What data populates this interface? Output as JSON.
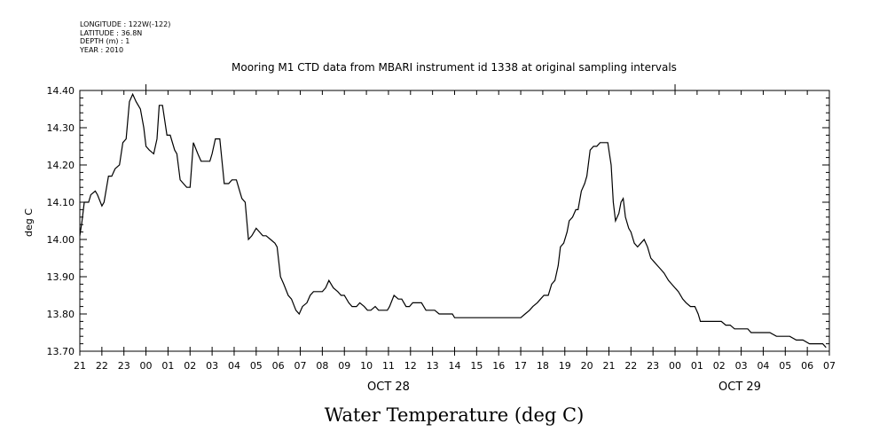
{
  "header": {
    "longitude": "LONGITUDE : 122W(-122)",
    "latitude": "LATITUDE : 36.8N",
    "depth": "DEPTH (m) : 1",
    "year": "YEAR : 2010"
  },
  "chart_data": {
    "type": "line",
    "title": "Mooring M1 CTD data from MBARI instrument id 1338 at original sampling intervals",
    "ylabel": "deg C",
    "xlabel": "Water Temperature (deg C)",
    "ylim": [
      13.7,
      14.4
    ],
    "yticks": [
      "13.70",
      "13.80",
      "13.90",
      "14.00",
      "14.10",
      "14.20",
      "14.30",
      "14.40"
    ],
    "xlim_hours": [
      21,
      55
    ],
    "xtick_labels": [
      "21",
      "22",
      "23",
      "00",
      "01",
      "02",
      "03",
      "04",
      "05",
      "06",
      "07",
      "08",
      "09",
      "10",
      "11",
      "12",
      "13",
      "14",
      "15",
      "16",
      "17",
      "18",
      "19",
      "20",
      "21",
      "22",
      "23",
      "00",
      "01",
      "02",
      "03",
      "04",
      "05",
      "06",
      "07"
    ],
    "date_labels": [
      "OCT 28",
      "OCT 29"
    ],
    "grid": false,
    "series": [
      {
        "values": [
          [
            21.0,
            14.01
          ],
          [
            21.1,
            14.05
          ],
          [
            21.2,
            14.1
          ],
          [
            21.4,
            14.1
          ],
          [
            21.5,
            14.12
          ],
          [
            21.7,
            14.13
          ],
          [
            21.8,
            14.12
          ],
          [
            22.0,
            14.09
          ],
          [
            22.1,
            14.1
          ],
          [
            22.3,
            14.17
          ],
          [
            22.45,
            14.17
          ],
          [
            22.6,
            14.19
          ],
          [
            22.8,
            14.2
          ],
          [
            22.95,
            14.26
          ],
          [
            23.1,
            14.27
          ],
          [
            23.25,
            14.37
          ],
          [
            23.4,
            14.39
          ],
          [
            23.55,
            14.37
          ],
          [
            23.75,
            14.35
          ],
          [
            23.9,
            14.3
          ],
          [
            24.0,
            14.25
          ],
          [
            24.15,
            14.24
          ],
          [
            24.35,
            14.23
          ],
          [
            24.5,
            14.27
          ],
          [
            24.6,
            14.36
          ],
          [
            24.75,
            14.36
          ],
          [
            24.95,
            14.28
          ],
          [
            25.1,
            14.28
          ],
          [
            25.3,
            14.24
          ],
          [
            25.4,
            14.23
          ],
          [
            25.55,
            14.16
          ],
          [
            25.7,
            14.15
          ],
          [
            25.85,
            14.14
          ],
          [
            26.0,
            14.14
          ],
          [
            26.15,
            14.26
          ],
          [
            26.35,
            14.23
          ],
          [
            26.5,
            14.21
          ],
          [
            26.7,
            14.21
          ],
          [
            26.9,
            14.21
          ],
          [
            27.0,
            14.23
          ],
          [
            27.15,
            14.27
          ],
          [
            27.35,
            14.27
          ],
          [
            27.55,
            14.15
          ],
          [
            27.75,
            14.15
          ],
          [
            27.9,
            14.16
          ],
          [
            28.1,
            14.16
          ],
          [
            28.25,
            14.13
          ],
          [
            28.35,
            14.11
          ],
          [
            28.5,
            14.1
          ],
          [
            28.65,
            14.0
          ],
          [
            28.8,
            14.01
          ],
          [
            29.0,
            14.03
          ],
          [
            29.15,
            14.02
          ],
          [
            29.3,
            14.01
          ],
          [
            29.45,
            14.01
          ],
          [
            29.65,
            14.0
          ],
          [
            29.85,
            13.99
          ],
          [
            29.95,
            13.98
          ],
          [
            30.1,
            13.9
          ],
          [
            30.25,
            13.88
          ],
          [
            30.45,
            13.85
          ],
          [
            30.6,
            13.84
          ],
          [
            30.8,
            13.81
          ],
          [
            30.95,
            13.8
          ],
          [
            31.1,
            13.82
          ],
          [
            31.3,
            13.83
          ],
          [
            31.45,
            13.85
          ],
          [
            31.6,
            13.86
          ],
          [
            31.8,
            13.86
          ],
          [
            32.0,
            13.86
          ],
          [
            32.15,
            13.87
          ],
          [
            32.3,
            13.89
          ],
          [
            32.5,
            13.87
          ],
          [
            32.7,
            13.86
          ],
          [
            32.85,
            13.85
          ],
          [
            33.0,
            13.85
          ],
          [
            33.2,
            13.83
          ],
          [
            33.35,
            13.82
          ],
          [
            33.55,
            13.82
          ],
          [
            33.7,
            13.83
          ],
          [
            33.9,
            13.82
          ],
          [
            34.05,
            13.81
          ],
          [
            34.2,
            13.81
          ],
          [
            34.4,
            13.82
          ],
          [
            34.55,
            13.81
          ],
          [
            34.75,
            13.81
          ],
          [
            34.95,
            13.81
          ],
          [
            35.05,
            13.82
          ],
          [
            35.25,
            13.85
          ],
          [
            35.45,
            13.84
          ],
          [
            35.6,
            13.84
          ],
          [
            35.8,
            13.82
          ],
          [
            35.95,
            13.82
          ],
          [
            36.1,
            13.83
          ],
          [
            36.3,
            13.83
          ],
          [
            36.5,
            13.83
          ],
          [
            36.7,
            13.81
          ],
          [
            36.9,
            13.81
          ],
          [
            37.1,
            13.81
          ],
          [
            37.3,
            13.8
          ],
          [
            37.5,
            13.8
          ],
          [
            37.7,
            13.8
          ],
          [
            37.9,
            13.8
          ],
          [
            38.0,
            13.79
          ],
          [
            38.2,
            13.79
          ],
          [
            38.4,
            13.79
          ],
          [
            38.55,
            13.79
          ],
          [
            38.75,
            13.79
          ],
          [
            39.0,
            13.79
          ],
          [
            39.2,
            13.79
          ],
          [
            39.4,
            13.79
          ],
          [
            39.6,
            13.79
          ],
          [
            39.8,
            13.79
          ],
          [
            40.0,
            13.79
          ],
          [
            40.2,
            13.79
          ],
          [
            40.4,
            13.79
          ],
          [
            40.6,
            13.79
          ],
          [
            40.8,
            13.79
          ],
          [
            41.0,
            13.79
          ],
          [
            41.2,
            13.8
          ],
          [
            41.4,
            13.81
          ],
          [
            41.55,
            13.82
          ],
          [
            41.75,
            13.83
          ],
          [
            41.9,
            13.84
          ],
          [
            42.05,
            13.85
          ],
          [
            42.25,
            13.85
          ],
          [
            42.4,
            13.88
          ],
          [
            42.55,
            13.89
          ],
          [
            42.7,
            13.93
          ],
          [
            42.8,
            13.98
          ],
          [
            42.95,
            13.99
          ],
          [
            43.1,
            14.02
          ],
          [
            43.2,
            14.05
          ],
          [
            43.35,
            14.06
          ],
          [
            43.5,
            14.08
          ],
          [
            43.6,
            14.08
          ],
          [
            43.75,
            14.13
          ],
          [
            43.9,
            14.15
          ],
          [
            44.0,
            14.17
          ],
          [
            44.15,
            14.24
          ],
          [
            44.3,
            14.25
          ],
          [
            44.45,
            14.25
          ],
          [
            44.6,
            14.26
          ],
          [
            44.8,
            14.26
          ],
          [
            44.95,
            14.26
          ],
          [
            45.1,
            14.2
          ],
          [
            45.2,
            14.1
          ],
          [
            45.3,
            14.05
          ],
          [
            45.45,
            14.07
          ],
          [
            45.55,
            14.1
          ],
          [
            45.65,
            14.11
          ],
          [
            45.75,
            14.06
          ],
          [
            45.9,
            14.03
          ],
          [
            46.0,
            14.02
          ],
          [
            46.15,
            13.99
          ],
          [
            46.3,
            13.98
          ],
          [
            46.45,
            13.99
          ],
          [
            46.6,
            14.0
          ],
          [
            46.75,
            13.98
          ],
          [
            46.9,
            13.95
          ],
          [
            47.05,
            13.94
          ],
          [
            47.2,
            13.93
          ],
          [
            47.35,
            13.92
          ],
          [
            47.5,
            13.91
          ],
          [
            47.7,
            13.89
          ],
          [
            47.85,
            13.88
          ],
          [
            48.0,
            13.87
          ],
          [
            48.15,
            13.86
          ],
          [
            48.35,
            13.84
          ],
          [
            48.5,
            13.83
          ],
          [
            48.7,
            13.82
          ],
          [
            48.9,
            13.82
          ],
          [
            49.05,
            13.8
          ],
          [
            49.15,
            13.78
          ],
          [
            49.35,
            13.78
          ],
          [
            49.5,
            13.78
          ],
          [
            49.7,
            13.78
          ],
          [
            49.85,
            13.78
          ],
          [
            50.1,
            13.78
          ],
          [
            50.3,
            13.77
          ],
          [
            50.5,
            13.77
          ],
          [
            50.7,
            13.76
          ],
          [
            50.9,
            13.76
          ],
          [
            51.1,
            13.76
          ],
          [
            51.3,
            13.76
          ],
          [
            51.45,
            13.75
          ],
          [
            51.7,
            13.75
          ],
          [
            52.0,
            13.75
          ],
          [
            52.3,
            13.75
          ],
          [
            52.6,
            13.74
          ],
          [
            52.9,
            13.74
          ],
          [
            53.2,
            13.74
          ],
          [
            53.5,
            13.73
          ],
          [
            53.8,
            13.73
          ],
          [
            54.1,
            13.72
          ],
          [
            54.4,
            13.72
          ],
          [
            54.7,
            13.72
          ],
          [
            54.85,
            13.71
          ]
        ]
      }
    ]
  }
}
